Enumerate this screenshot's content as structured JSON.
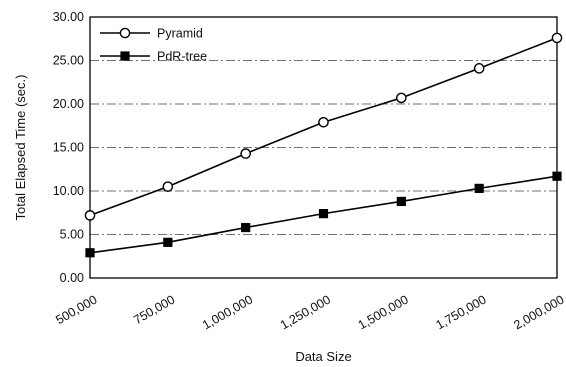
{
  "chart_data": {
    "type": "line",
    "x": [
      500000,
      750000,
      1000000,
      1250000,
      1500000,
      1750000,
      2000000
    ],
    "x_tick_labels": [
      "500,000",
      "750,000",
      "1,000,000",
      "1,250,000",
      "1,500,000",
      "1,750,000",
      "2,000,000"
    ],
    "series": [
      {
        "name": "Pyramid",
        "marker": "open-circle",
        "color": "#000000",
        "values": [
          7.2,
          10.5,
          14.3,
          17.9,
          20.7,
          24.1,
          27.6
        ]
      },
      {
        "name": "PdR-tree",
        "marker": "filled-square",
        "color": "#000000",
        "values": [
          2.9,
          4.1,
          5.8,
          7.4,
          8.8,
          10.3,
          11.7
        ]
      }
    ],
    "xlabel": "Data Size",
    "ylabel": "Total Elapsed Time (sec.)",
    "ylim": [
      0,
      30
    ],
    "y_ticks": [
      0,
      5,
      10,
      15,
      20,
      25,
      30
    ],
    "y_tick_labels": [
      "0.00",
      "5.00",
      "10.00",
      "15.00",
      "20.00",
      "25.00",
      "30.00"
    ],
    "grid": "horizontal dash-dot",
    "legend_position": "top-left"
  }
}
